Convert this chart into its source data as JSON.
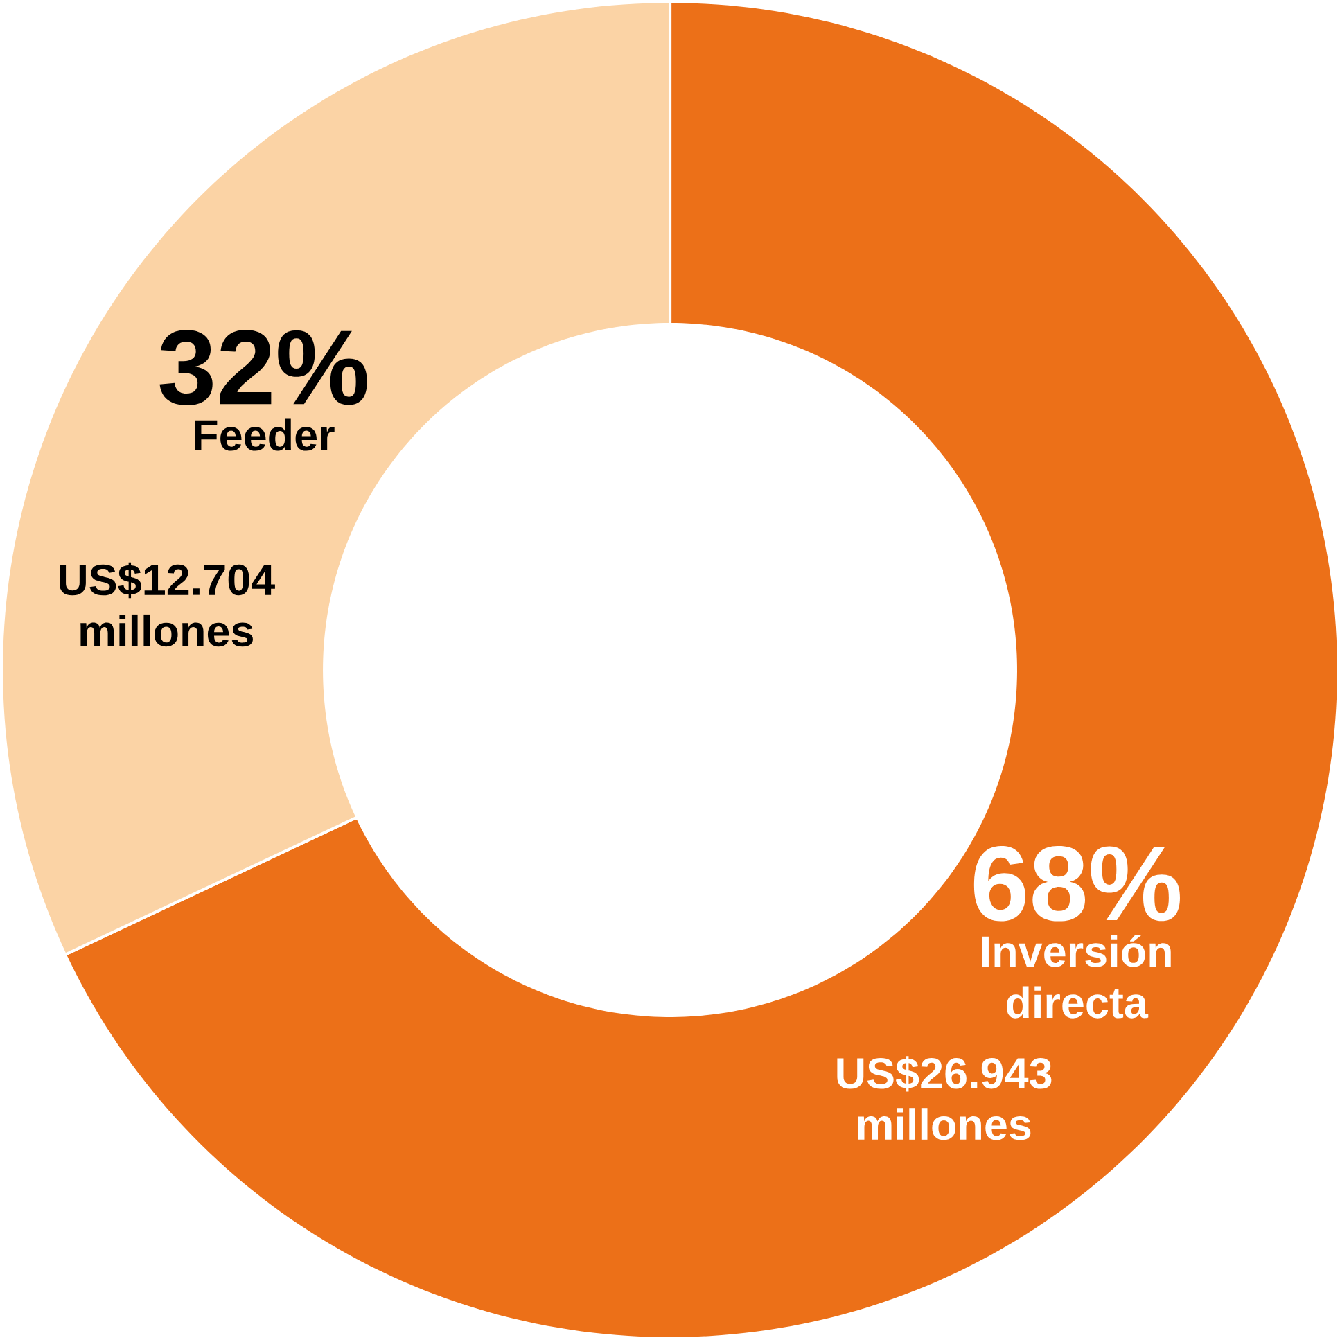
{
  "chart_data": {
    "type": "donut",
    "categories": [
      "Inversión directa",
      "Feeder"
    ],
    "values": [
      68,
      32
    ],
    "colors": [
      "#ec7018",
      "#fbd3a5"
    ],
    "value_labels": [
      "68%",
      "32%"
    ],
    "annotations": [
      "US$26.943 millones",
      "US$12.704 millones"
    ]
  }
}
